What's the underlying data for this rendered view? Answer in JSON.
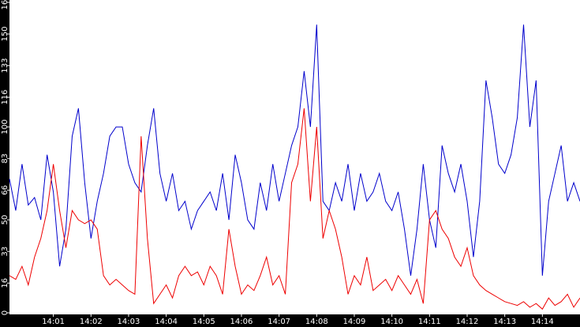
{
  "chart_data": {
    "type": "line",
    "categories": [
      null,
      null,
      null,
      null,
      null,
      null,
      null,
      "14:01",
      null,
      null,
      null,
      null,
      null,
      "14:02",
      null,
      null,
      null,
      null,
      null,
      "14:03",
      null,
      null,
      null,
      null,
      null,
      "14:04",
      null,
      null,
      null,
      null,
      null,
      "14:05",
      null,
      null,
      null,
      null,
      null,
      "14:06",
      null,
      null,
      null,
      null,
      null,
      "14:07",
      null,
      null,
      null,
      null,
      null,
      "14:08",
      null,
      null,
      null,
      null,
      null,
      "14:09",
      null,
      null,
      null,
      null,
      null,
      "14:10",
      null,
      null,
      null,
      null,
      null,
      "14:11",
      null,
      null,
      null,
      null,
      null,
      "14:12",
      null,
      null,
      null,
      null,
      null,
      "14:13",
      null,
      null,
      null,
      null,
      null,
      "14:14",
      null,
      null,
      null,
      null,
      null,
      null
    ],
    "series": [
      {
        "color": "#0000cc",
        "values": [
          72,
          55,
          80,
          58,
          62,
          50,
          85,
          65,
          25,
          45,
          95,
          110,
          70,
          40,
          60,
          75,
          95,
          100,
          100,
          80,
          70,
          65,
          90,
          110,
          75,
          60,
          75,
          55,
          60,
          45,
          55,
          60,
          65,
          55,
          75,
          50,
          85,
          70,
          50,
          45,
          70,
          55,
          80,
          60,
          75,
          90,
          100,
          130,
          100,
          155,
          60,
          55,
          70,
          60,
          80,
          55,
          75,
          60,
          65,
          75,
          60,
          55,
          65,
          45,
          20,
          45,
          80,
          50,
          35,
          90,
          75,
          65,
          80,
          60,
          30,
          60,
          125,
          105,
          80,
          75,
          85,
          105,
          155,
          100,
          125,
          20,
          60,
          75,
          90,
          60,
          70,
          60
        ]
      },
      {
        "color": "#ee0000",
        "values": [
          20,
          18,
          25,
          15,
          30,
          40,
          55,
          80,
          55,
          35,
          55,
          50,
          48,
          50,
          45,
          20,
          15,
          18,
          15,
          12,
          10,
          95,
          40,
          5,
          10,
          15,
          8,
          20,
          25,
          20,
          22,
          15,
          25,
          20,
          10,
          45,
          25,
          10,
          15,
          12,
          20,
          30,
          15,
          20,
          10,
          70,
          80,
          110,
          60,
          100,
          40,
          55,
          45,
          30,
          10,
          20,
          15,
          30,
          12,
          15,
          18,
          12,
          20,
          15,
          10,
          18,
          5,
          50,
          55,
          45,
          40,
          30,
          25,
          35,
          20,
          15,
          12,
          10,
          8,
          6,
          5,
          4,
          6,
          3,
          5,
          2,
          8,
          4,
          6,
          10,
          3,
          8
        ]
      }
    ],
    "ylim": [
      0,
      167
    ],
    "yticks": [
      0,
      16,
      33,
      50,
      66,
      83,
      100,
      116,
      133,
      150,
      167
    ]
  }
}
